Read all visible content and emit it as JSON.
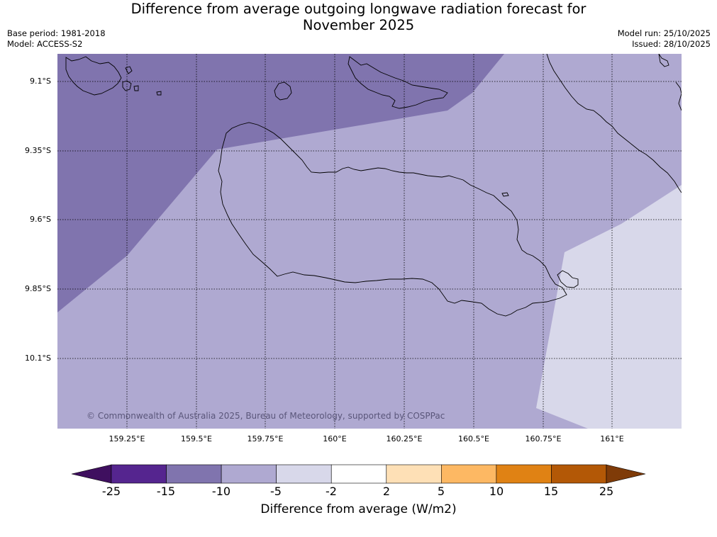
{
  "header": {
    "title_line1": "Difference from average outgoing longwave radiation forecast for",
    "title_line2": "November 2025",
    "base_period": "Base period: 1981-2018",
    "model": "Model: ACCESS-S2",
    "model_run": "Model run: 25/10/2025",
    "issued": "Issued: 28/10/2025"
  },
  "map": {
    "lat_labels": [
      "9.1°S",
      "9.35°S",
      "9.6°S",
      "9.85°S",
      "10.1°S"
    ],
    "lon_labels": [
      "159.25°E",
      "159.5°E",
      "159.75°E",
      "160°E",
      "160.25°E",
      "160.5°E",
      "160.75°E",
      "161°E"
    ],
    "credit": "© Commonwealth of Australia 2025, Bureau of Meteorology, supported by COSPPac",
    "colors": {
      "band_-15_-10": "#8074ae",
      "band_-10_-5": "#afa9d1",
      "band_-5_-2": "#d8d8ea",
      "coastline": "#000000",
      "grid": "#000000"
    }
  },
  "colorbar": {
    "title": "Difference from average (W/m2)",
    "ticks": [
      "-25",
      "-15",
      "-10",
      "-5",
      "-2",
      "2",
      "5",
      "10",
      "15",
      "25"
    ],
    "colors": [
      "#3f0f5f",
      "#55258f",
      "#8074ae",
      "#afa9d1",
      "#d8d8ea",
      "#ffffff",
      "#fee0b6",
      "#fdb863",
      "#e08214",
      "#b35806",
      "#7f3b08"
    ]
  }
}
